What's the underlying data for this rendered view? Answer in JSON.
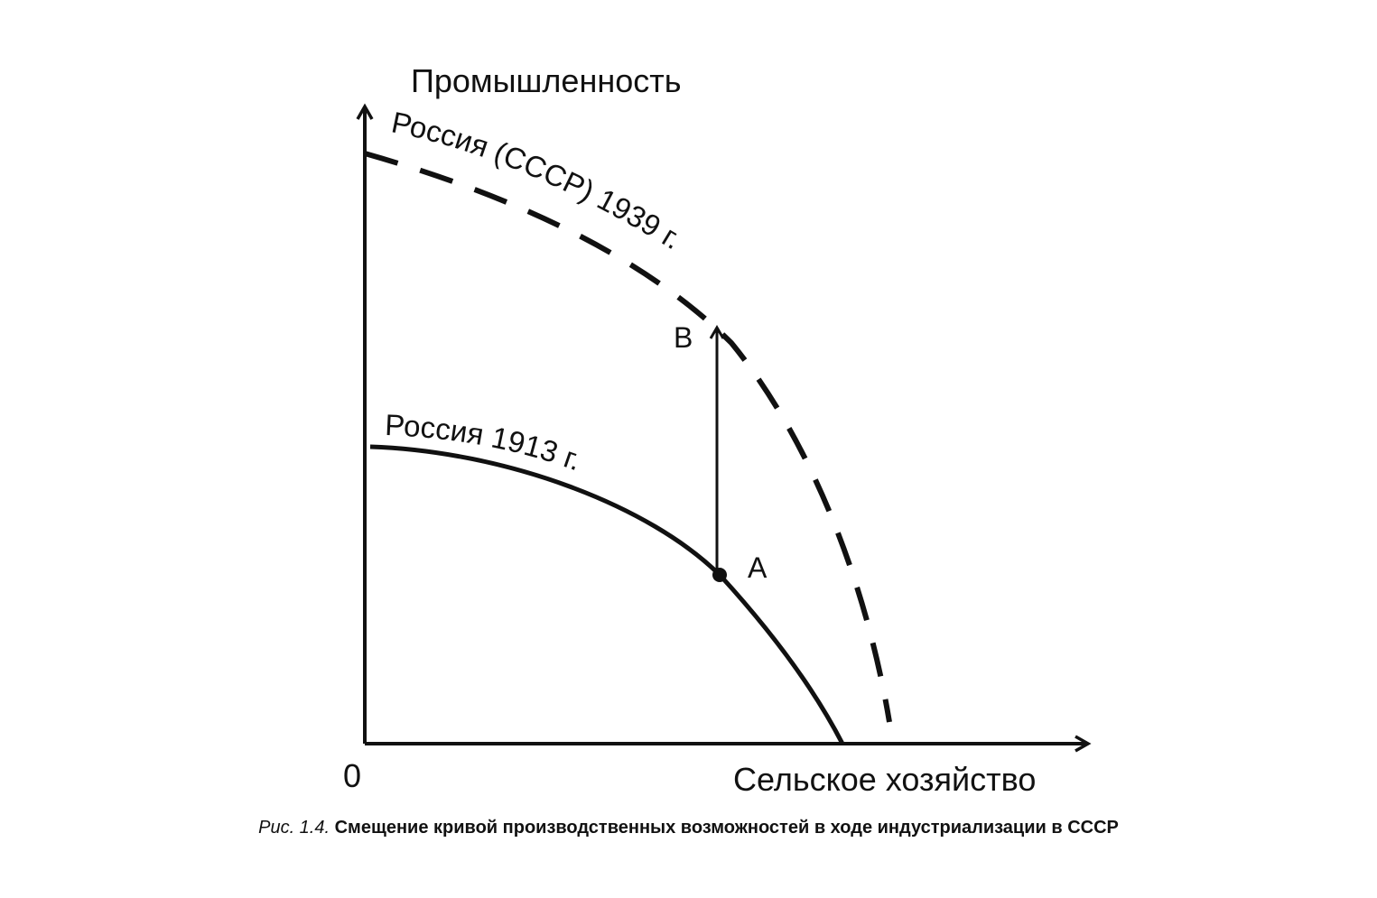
{
  "y_axis_label": "Промышленность",
  "x_axis_label": "Сельское хозяйство",
  "origin_label": "0",
  "curves": {
    "curve_1913": {
      "label": "Россия 1913 г.",
      "style": "solid"
    },
    "curve_1939": {
      "label": "Россия (СССР) 1939 г.",
      "style": "dashed"
    }
  },
  "points": {
    "a": "A",
    "b": "B"
  },
  "caption": {
    "number": "Рис. 1.4.",
    "text": "Смещение кривой производственных возможностей в ходе индустриализации в СССР"
  },
  "colors": {
    "ink": "#111111",
    "background": "#ffffff"
  }
}
